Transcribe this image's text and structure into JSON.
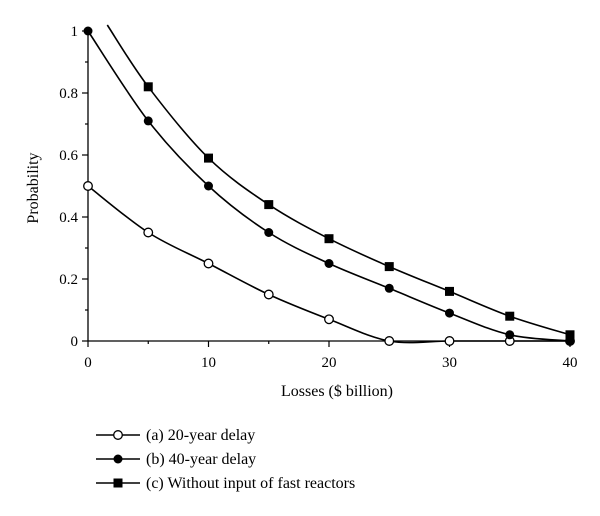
{
  "chart_data": {
    "type": "line",
    "xlabel": "Losses ($ billion)",
    "ylabel": "Probability",
    "xlim": [
      0,
      40
    ],
    "ylim": [
      0,
      1
    ],
    "x_ticks": [
      0,
      10,
      20,
      30,
      40
    ],
    "y_ticks": [
      0,
      0.2,
      0.4,
      0.6,
      0.8,
      1
    ],
    "y_tick_labels": [
      "0",
      "0.2",
      "0.4",
      "0.6",
      "0.8",
      "1"
    ],
    "grid": false,
    "legend_position": "bottom-left",
    "series": [
      {
        "name": "(a) 20-year delay",
        "marker": "open-circle",
        "x": [
          0,
          5,
          10,
          15,
          20,
          25,
          30,
          35,
          40
        ],
        "values": [
          0.5,
          0.35,
          0.25,
          0.15,
          0.07,
          0.0,
          0.0,
          0.0,
          0.0
        ]
      },
      {
        "name": "(b) 40-year delay",
        "marker": "filled-circle",
        "x": [
          0,
          5,
          10,
          15,
          20,
          25,
          30,
          35,
          40
        ],
        "values": [
          1.0,
          0.71,
          0.5,
          0.35,
          0.25,
          0.17,
          0.09,
          0.02,
          0.0
        ]
      },
      {
        "name": "(c) Without input of fast reactors",
        "marker": "filled-square",
        "x": [
          5,
          10,
          15,
          20,
          25,
          30,
          35,
          40
        ],
        "values": [
          0.82,
          0.59,
          0.44,
          0.33,
          0.24,
          0.16,
          0.08,
          0.02
        ]
      }
    ]
  }
}
